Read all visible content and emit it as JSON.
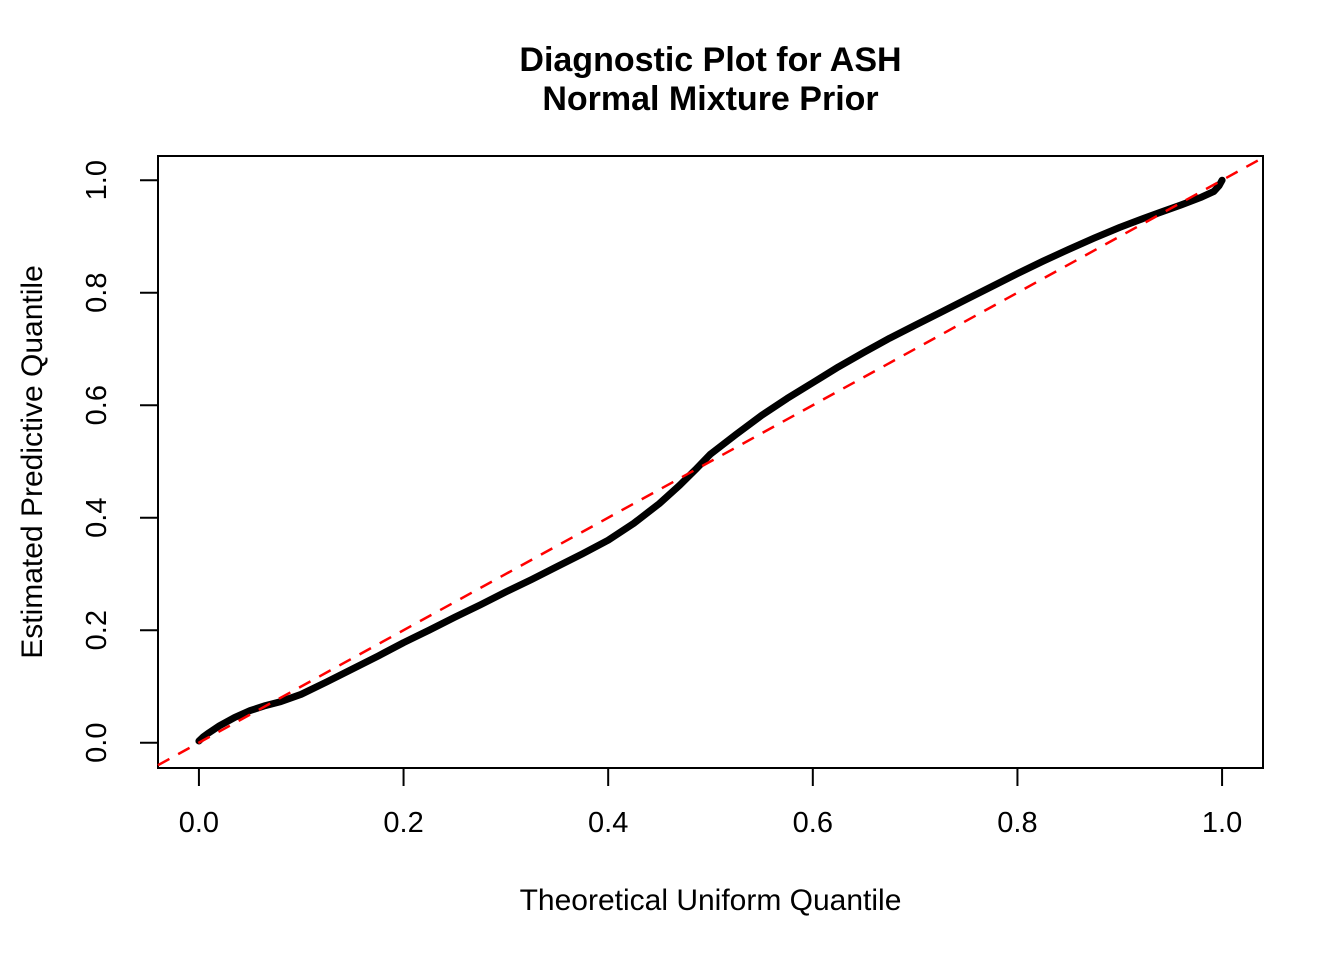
{
  "chart_data": {
    "type": "line",
    "title_line1": "Diagnostic Plot for ASH",
    "title_line2": "Normal Mixture Prior",
    "xlabel": "Theoretical Uniform Quantile",
    "ylabel": "Estimated Predictive Quantile",
    "xlim": [
      -0.04,
      1.04
    ],
    "ylim": [
      -0.045,
      1.043
    ],
    "x_ticks": [
      0.0,
      0.2,
      0.4,
      0.6,
      0.8,
      1.0
    ],
    "x_tick_labels": [
      "0.0",
      "0.2",
      "0.4",
      "0.6",
      "0.8",
      "1.0"
    ],
    "y_ticks": [
      0.0,
      0.2,
      0.4,
      0.6,
      0.8,
      1.0
    ],
    "y_tick_labels": [
      "0.0",
      "0.2",
      "0.4",
      "0.6",
      "0.8",
      "1.0"
    ],
    "grid": false,
    "legend": "none",
    "colors": {
      "curve": "#000000",
      "reference_line": "#FF0000",
      "axis": "#000000",
      "background": "#FFFFFF"
    },
    "series": [
      {
        "name": "estimated-predictive-quantiles",
        "style": "solid-thick",
        "color": "#000000",
        "points": [
          [
            0.0,
            0.003
          ],
          [
            0.004,
            0.01
          ],
          [
            0.01,
            0.018
          ],
          [
            0.02,
            0.03
          ],
          [
            0.035,
            0.045
          ],
          [
            0.05,
            0.057
          ],
          [
            0.065,
            0.066
          ],
          [
            0.08,
            0.073
          ],
          [
            0.1,
            0.086
          ],
          [
            0.125,
            0.108
          ],
          [
            0.15,
            0.131
          ],
          [
            0.175,
            0.154
          ],
          [
            0.2,
            0.178
          ],
          [
            0.225,
            0.2
          ],
          [
            0.25,
            0.223
          ],
          [
            0.275,
            0.245
          ],
          [
            0.3,
            0.268
          ],
          [
            0.325,
            0.29
          ],
          [
            0.35,
            0.313
          ],
          [
            0.375,
            0.336
          ],
          [
            0.4,
            0.36
          ],
          [
            0.425,
            0.39
          ],
          [
            0.45,
            0.425
          ],
          [
            0.47,
            0.458
          ],
          [
            0.485,
            0.485
          ],
          [
            0.5,
            0.513
          ],
          [
            0.525,
            0.548
          ],
          [
            0.55,
            0.582
          ],
          [
            0.575,
            0.612
          ],
          [
            0.6,
            0.64
          ],
          [
            0.625,
            0.668
          ],
          [
            0.65,
            0.694
          ],
          [
            0.675,
            0.719
          ],
          [
            0.7,
            0.742
          ],
          [
            0.725,
            0.765
          ],
          [
            0.75,
            0.788
          ],
          [
            0.775,
            0.811
          ],
          [
            0.8,
            0.834
          ],
          [
            0.825,
            0.856
          ],
          [
            0.85,
            0.877
          ],
          [
            0.875,
            0.897
          ],
          [
            0.9,
            0.916
          ],
          [
            0.92,
            0.93
          ],
          [
            0.94,
            0.943
          ],
          [
            0.96,
            0.956
          ],
          [
            0.98,
            0.97
          ],
          [
            0.992,
            0.98
          ],
          [
            0.997,
            0.99
          ],
          [
            1.0,
            1.0
          ]
        ]
      },
      {
        "name": "identity-reference-line",
        "style": "dashed",
        "color": "#FF0000",
        "points": [
          [
            -0.04,
            -0.04
          ],
          [
            1.04,
            1.04
          ]
        ]
      }
    ]
  }
}
